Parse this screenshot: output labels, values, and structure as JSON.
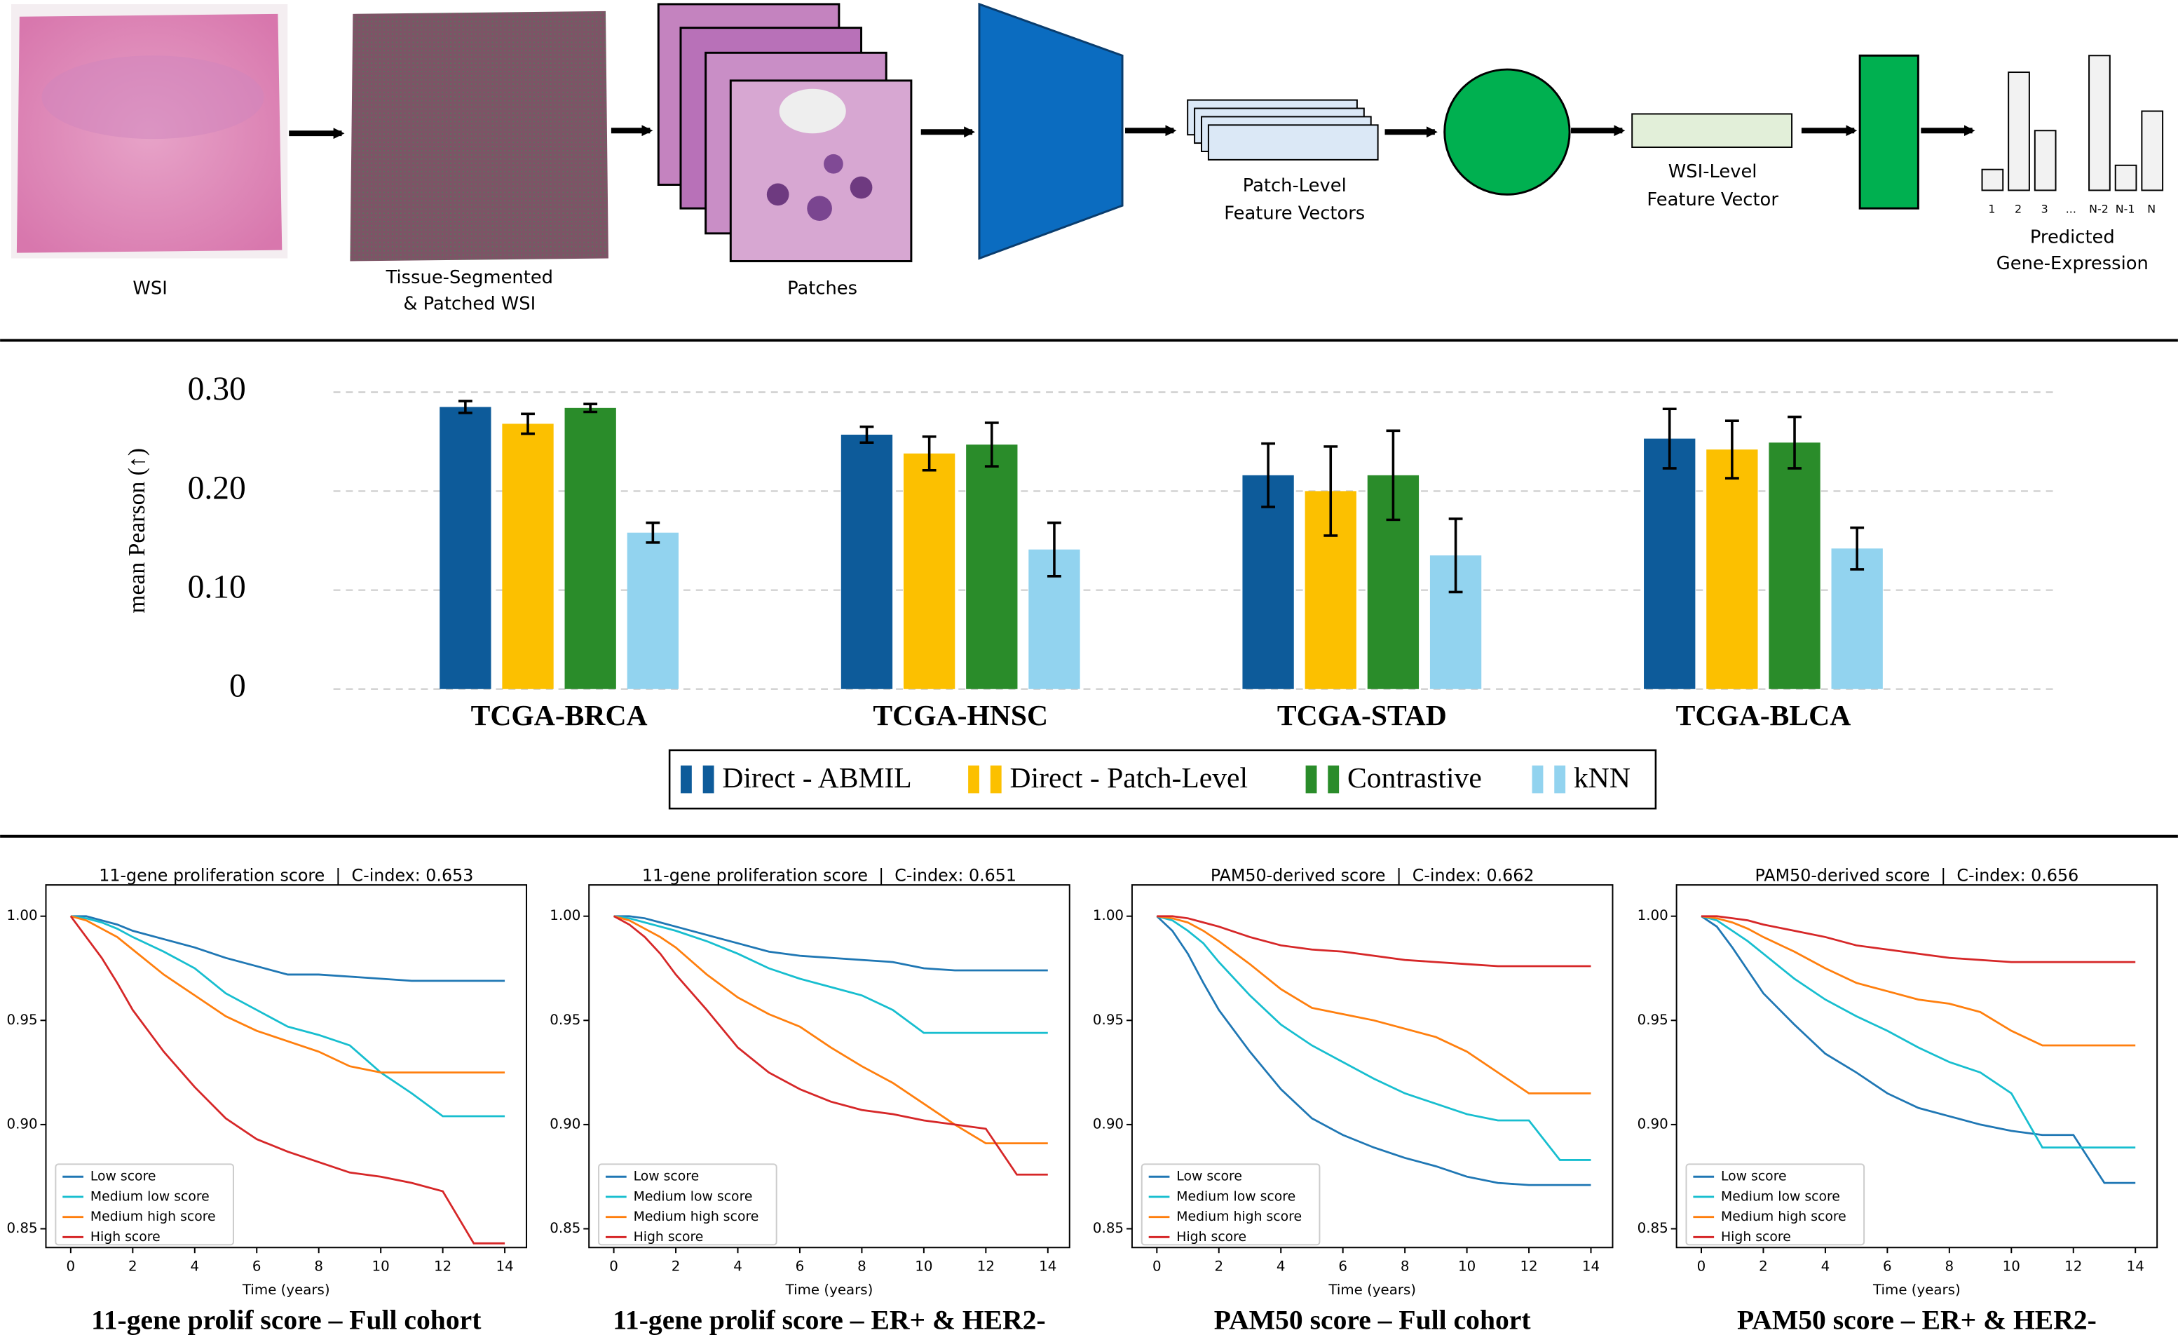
{
  "pipeline": {
    "wsi_label": "WSI",
    "segmented_label": [
      "Tissue-Segmented",
      "& Patched WSI"
    ],
    "patches_label": "Patches",
    "patch_features_label": [
      "Patch-Level",
      "Feature Vectors"
    ],
    "wsi_feature_label": [
      "WSI-Level",
      "Feature Vector"
    ],
    "gene_ticks": [
      "1",
      "2",
      "3",
      "...",
      "N-2",
      "N-1",
      "N"
    ],
    "output_label": [
      "Predicted",
      "Gene-Expression"
    ]
  },
  "chart_data": [
    {
      "type": "bar",
      "ylabel": "mean Pearson (↑)",
      "categories": [
        "TCGA-BRCA",
        "TCGA-HNSC",
        "TCGA-STAD",
        "TCGA-BLCA"
      ],
      "series": [
        {
          "name": "Direct - ABMIL",
          "color": "#0d5b9a",
          "values": [
            0.285,
            0.257,
            0.216,
            0.253
          ],
          "errors": [
            0.006,
            0.008,
            0.032,
            0.03
          ]
        },
        {
          "name": "Direct - Patch-Level",
          "color": "#fcc000",
          "values": [
            0.268,
            0.238,
            0.2,
            0.242
          ],
          "errors": [
            0.01,
            0.017,
            0.045,
            0.029
          ]
        },
        {
          "name": "Contrastive",
          "color": "#2a8c2a",
          "values": [
            0.284,
            0.247,
            0.216,
            0.249
          ],
          "errors": [
            0.004,
            0.022,
            0.045,
            0.026
          ]
        },
        {
          "name": "kNN",
          "color": "#92d3ef",
          "values": [
            0.158,
            0.141,
            0.135,
            0.142
          ],
          "errors": [
            0.01,
            0.027,
            0.037,
            0.021
          ]
        }
      ],
      "ylim": [
        0,
        0.32
      ],
      "yticks": [
        0,
        {
          "value": 0.1,
          "label": "0.10"
        },
        {
          "value": 0.2,
          "label": "0.20"
        },
        {
          "value": 0.3,
          "label": "0.30"
        }
      ],
      "grid": true,
      "legend": "below"
    },
    {
      "type": "line",
      "title": "11-gene proliferation score  |  C-index: 0.653",
      "caption": "11-gene prolif score – Full cohort",
      "xlabel": "Time (years)",
      "x": [
        0,
        0.5,
        1,
        1.5,
        2,
        3,
        4,
        5,
        6,
        7,
        8,
        9,
        10,
        11,
        12,
        13,
        14
      ],
      "series": [
        {
          "name": "Low score",
          "color": "#1f77b4",
          "values": [
            1.0,
            1.0,
            0.998,
            0.996,
            0.993,
            0.989,
            0.985,
            0.98,
            0.976,
            0.972,
            0.972,
            0.971,
            0.97,
            0.969,
            0.969,
            0.969,
            0.969
          ]
        },
        {
          "name": "Medium low score",
          "color": "#17becf",
          "values": [
            1.0,
            0.999,
            0.997,
            0.994,
            0.99,
            0.983,
            0.975,
            0.963,
            0.955,
            0.947,
            0.943,
            0.938,
            0.925,
            0.915,
            0.904,
            0.904,
            0.904
          ]
        },
        {
          "name": "Medium high score",
          "color": "#ff7f0e",
          "values": [
            1.0,
            0.998,
            0.994,
            0.99,
            0.984,
            0.972,
            0.962,
            0.952,
            0.945,
            0.94,
            0.935,
            0.928,
            0.925,
            0.925,
            0.925,
            0.925,
            0.925
          ]
        },
        {
          "name": "High score",
          "color": "#d62728",
          "values": [
            1.0,
            0.99,
            0.98,
            0.968,
            0.955,
            0.935,
            0.918,
            0.903,
            0.893,
            0.887,
            0.882,
            0.877,
            0.875,
            0.872,
            0.868,
            0.843,
            0.843
          ]
        }
      ],
      "xlim": [
        -0.8,
        14.7
      ],
      "xticks": [
        0,
        2,
        4,
        6,
        8,
        10,
        12,
        14
      ],
      "ylim": [
        0.841,
        1.015
      ],
      "yticks": [
        0.85,
        {
          "value": 0.9,
          "label": "0.90"
        },
        0.95,
        {
          "value": 1,
          "label": "1.00"
        }
      ],
      "legend": "lower left"
    },
    {
      "type": "line",
      "title": "11-gene proliferation score  |  C-index: 0.651",
      "caption": "11-gene prolif score – ER+ & HER2-",
      "xlabel": "Time (years)",
      "x": [
        0,
        0.5,
        1,
        1.5,
        2,
        3,
        4,
        5,
        6,
        7,
        8,
        9,
        10,
        11,
        12,
        13,
        14
      ],
      "series": [
        {
          "name": "Low score",
          "color": "#1f77b4",
          "values": [
            1,
            1,
            0.999,
            0.997,
            0.995,
            0.991,
            0.987,
            0.983,
            0.981,
            0.98,
            0.979,
            0.978,
            0.975,
            0.974,
            0.974,
            0.974,
            0.974
          ]
        },
        {
          "name": "Medium low score",
          "color": "#17becf",
          "values": [
            1,
            0.999,
            0.997,
            0.995,
            0.993,
            0.988,
            0.982,
            0.975,
            0.97,
            0.966,
            0.962,
            0.955,
            0.944,
            0.944,
            0.944,
            0.944,
            0.944
          ]
        },
        {
          "name": "Medium high score",
          "color": "#ff7f0e",
          "values": [
            1,
            0.998,
            0.994,
            0.99,
            0.985,
            0.972,
            0.961,
            0.953,
            0.947,
            0.937,
            0.928,
            0.92,
            0.91,
            0.9,
            0.891,
            0.891,
            0.891
          ]
        },
        {
          "name": "High score",
          "color": "#d62728",
          "values": [
            1,
            0.996,
            0.99,
            0.982,
            0.972,
            0.955,
            0.937,
            0.925,
            0.917,
            0.911,
            0.907,
            0.905,
            0.902,
            0.9,
            0.898,
            0.876,
            0.876
          ]
        }
      ],
      "xlim": [
        -0.8,
        14.7
      ],
      "xticks": [
        0,
        2,
        4,
        6,
        8,
        10,
        12,
        14
      ],
      "ylim": [
        0.841,
        1.015
      ],
      "yticks": [
        0.85,
        {
          "value": 0.9,
          "label": "0.90"
        },
        0.95,
        {
          "value": 1,
          "label": "1.00"
        }
      ],
      "legend": "lower left"
    },
    {
      "type": "line",
      "title": "PAM50-derived score  |  C-index: 0.662",
      "caption": "PAM50 score – Full cohort",
      "xlabel": "Time (years)",
      "x": [
        0,
        0.5,
        1,
        1.5,
        2,
        3,
        4,
        5,
        6,
        7,
        8,
        9,
        10,
        11,
        12,
        13,
        14
      ],
      "series": [
        {
          "name": "Low score",
          "color": "#1f77b4",
          "values": [
            1,
            0.993,
            0.982,
            0.968,
            0.955,
            0.935,
            0.917,
            0.903,
            0.895,
            0.889,
            0.884,
            0.88,
            0.875,
            0.872,
            0.871,
            0.871,
            0.871
          ]
        },
        {
          "name": "Medium low score",
          "color": "#17becf",
          "values": [
            1,
            0.998,
            0.993,
            0.987,
            0.978,
            0.962,
            0.948,
            0.938,
            0.93,
            0.922,
            0.915,
            0.91,
            0.905,
            0.902,
            0.902,
            0.883,
            0.883
          ]
        },
        {
          "name": "Medium high score",
          "color": "#ff7f0e",
          "values": [
            1,
            0.999,
            0.997,
            0.993,
            0.988,
            0.977,
            0.965,
            0.956,
            0.953,
            0.95,
            0.946,
            0.942,
            0.935,
            0.925,
            0.915,
            0.915,
            0.915
          ]
        },
        {
          "name": "High score",
          "color": "#d62728",
          "values": [
            1,
            1,
            0.999,
            0.997,
            0.995,
            0.99,
            0.986,
            0.984,
            0.983,
            0.981,
            0.979,
            0.978,
            0.977,
            0.976,
            0.976,
            0.976,
            0.976
          ]
        }
      ],
      "xlim": [
        -0.8,
        14.7
      ],
      "xticks": [
        0,
        2,
        4,
        6,
        8,
        10,
        12,
        14
      ],
      "ylim": [
        0.841,
        1.015
      ],
      "yticks": [
        0.85,
        {
          "value": 0.9,
          "label": "0.90"
        },
        0.95,
        {
          "value": 1,
          "label": "1.00"
        }
      ],
      "legend": "lower left"
    },
    {
      "type": "line",
      "title": "PAM50-derived score  |  C-index: 0.656",
      "caption": "PAM50 score – ER+ & HER2-",
      "xlabel": "Time (years)",
      "x": [
        0,
        0.5,
        1,
        1.5,
        2,
        3,
        4,
        5,
        6,
        7,
        8,
        9,
        10,
        11,
        12,
        13,
        14
      ],
      "series": [
        {
          "name": "Low score",
          "color": "#1f77b4",
          "values": [
            1,
            0.995,
            0.985,
            0.974,
            0.963,
            0.948,
            0.934,
            0.925,
            0.915,
            0.908,
            0.904,
            0.9,
            0.897,
            0.895,
            0.895,
            0.872,
            0.872
          ]
        },
        {
          "name": "Medium low score",
          "color": "#17becf",
          "values": [
            1,
            0.998,
            0.993,
            0.988,
            0.982,
            0.97,
            0.96,
            0.952,
            0.945,
            0.937,
            0.93,
            0.925,
            0.915,
            0.889,
            0.889,
            0.889,
            0.889
          ]
        },
        {
          "name": "Medium high score",
          "color": "#ff7f0e",
          "values": [
            1,
            0.999,
            0.997,
            0.994,
            0.99,
            0.983,
            0.975,
            0.968,
            0.964,
            0.96,
            0.958,
            0.954,
            0.945,
            0.938,
            0.938,
            0.938,
            0.938
          ]
        },
        {
          "name": "High score",
          "color": "#d62728",
          "values": [
            1,
            1,
            0.999,
            0.998,
            0.996,
            0.993,
            0.99,
            0.986,
            0.984,
            0.982,
            0.98,
            0.979,
            0.978,
            0.978,
            0.978,
            0.978,
            0.978
          ]
        }
      ],
      "xlim": [
        -0.8,
        14.7
      ],
      "xticks": [
        0,
        2,
        4,
        6,
        8,
        10,
        12,
        14
      ],
      "ylim": [
        0.841,
        1.015
      ],
      "yticks": [
        0.85,
        {
          "value": 0.9,
          "label": "0.90"
        },
        0.95,
        {
          "value": 1,
          "label": "1.00"
        }
      ],
      "legend": "lower left"
    }
  ]
}
